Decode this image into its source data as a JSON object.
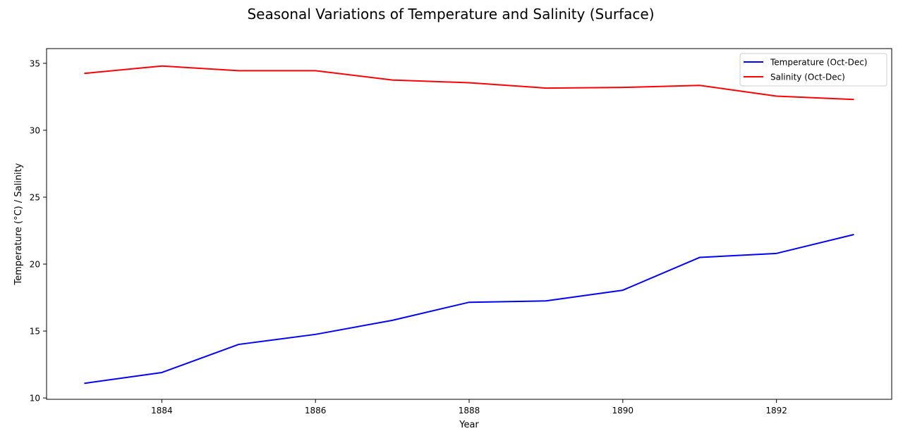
{
  "chart_data": {
    "type": "line",
    "title": "Seasonal Variations of Temperature and Salinity (Surface)",
    "xlabel": "Year",
    "ylabel": "Temperature (°C) / Salinity",
    "x": [
      1883,
      1884,
      1885,
      1886,
      1887,
      1888,
      1889,
      1890,
      1891,
      1892,
      1893
    ],
    "xlim": [
      1882.5,
      1893.5
    ],
    "ylim": [
      9.9,
      36.1
    ],
    "xticks": [
      1884,
      1886,
      1888,
      1890,
      1892
    ],
    "yticks": [
      10,
      15,
      20,
      25,
      30,
      35
    ],
    "grid": false,
    "legend_position": "top-right",
    "series": [
      {
        "name": "Temperature (Oct-Dec)",
        "color": "#0000ff",
        "values": [
          11.1,
          11.9,
          14.0,
          14.75,
          15.8,
          17.15,
          17.25,
          18.05,
          20.5,
          20.8,
          22.2
        ]
      },
      {
        "name": "Salinity (Oct-Dec)",
        "color": "#ff0000",
        "values": [
          34.25,
          34.8,
          34.45,
          34.45,
          33.75,
          33.55,
          33.15,
          33.2,
          33.35,
          32.55,
          32.3
        ]
      }
    ]
  }
}
